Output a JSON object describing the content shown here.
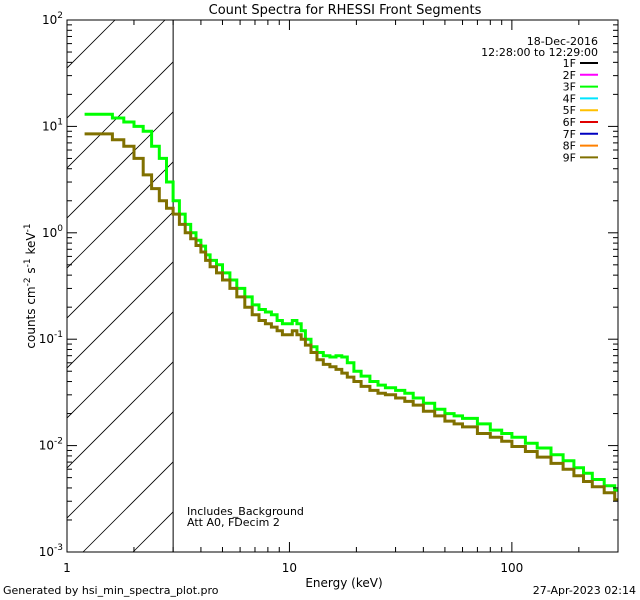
{
  "chart_data": {
    "type": "line",
    "title": "Count Spectra for RHESSI Front Segments",
    "xlabel": "Energy (keV)",
    "ylabel_base": "counts cm",
    "ylabel_exp1": "-2",
    "ylabel_mid1": " s",
    "ylabel_exp2": "-1",
    "ylabel_mid2": " keV",
    "ylabel_exp3": "-1",
    "x_scale": "log",
    "y_scale": "log",
    "xlim": [
      1,
      300
    ],
    "ylim": [
      0.001,
      100
    ],
    "x_ticks": [
      {
        "value": 1,
        "label": "1"
      },
      {
        "value": 10,
        "label": "10"
      },
      {
        "value": 100,
        "label": "100"
      }
    ],
    "y_ticks": [
      {
        "value": 100,
        "base": "10",
        "exp": "2"
      },
      {
        "value": 10,
        "base": "10",
        "exp": "1"
      },
      {
        "value": 1,
        "base": "10",
        "exp": "0"
      },
      {
        "value": 0.1,
        "base": "10",
        "exp": "-1"
      },
      {
        "value": 0.01,
        "base": "10",
        "exp": "-2"
      },
      {
        "value": 0.001,
        "base": "10",
        "exp": "-3"
      }
    ],
    "hatched_region_keV": [
      1,
      3
    ],
    "date": "18-Dec-2016",
    "time_range": "12:28:00 to 12:29:00",
    "annotation_lines": [
      "Includes_Background",
      "Att A0, FDecim 2"
    ],
    "legend": [
      {
        "label": "1F",
        "color": "#000000"
      },
      {
        "label": "2F",
        "color": "#ff00ff"
      },
      {
        "label": "3F",
        "color": "#00ff00"
      },
      {
        "label": "4F",
        "color": "#00e5ff"
      },
      {
        "label": "5F",
        "color": "#ffc000"
      },
      {
        "label": "6F",
        "color": "#e00000"
      },
      {
        "label": "7F",
        "color": "#0000c0"
      },
      {
        "label": "8F",
        "color": "#ff8000"
      },
      {
        "label": "9F",
        "color": "#807000"
      }
    ],
    "series": [
      {
        "name": "3F",
        "color": "#00ff00",
        "points": [
          [
            1.2,
            13
          ],
          [
            1.4,
            13
          ],
          [
            1.6,
            12
          ],
          [
            1.8,
            11
          ],
          [
            2.0,
            10
          ],
          [
            2.2,
            9
          ],
          [
            2.4,
            6.5
          ],
          [
            2.6,
            5
          ],
          [
            2.8,
            3
          ],
          [
            3.0,
            2
          ],
          [
            3.2,
            1.5
          ],
          [
            3.4,
            1.2
          ],
          [
            3.6,
            1.0
          ],
          [
            3.8,
            0.85
          ],
          [
            4.0,
            0.75
          ],
          [
            4.2,
            0.62
          ],
          [
            4.4,
            0.55
          ],
          [
            4.7,
            0.5
          ],
          [
            5.0,
            0.42
          ],
          [
            5.4,
            0.36
          ],
          [
            5.8,
            0.3
          ],
          [
            6.3,
            0.25
          ],
          [
            6.8,
            0.21
          ],
          [
            7.3,
            0.19
          ],
          [
            7.8,
            0.18
          ],
          [
            8.3,
            0.17
          ],
          [
            8.8,
            0.15
          ],
          [
            9.3,
            0.14
          ],
          [
            9.8,
            0.14
          ],
          [
            10.3,
            0.15
          ],
          [
            10.8,
            0.14
          ],
          [
            11.3,
            0.12
          ],
          [
            11.8,
            0.1
          ],
          [
            12.5,
            0.085
          ],
          [
            13.3,
            0.075
          ],
          [
            14.2,
            0.07
          ],
          [
            15.2,
            0.068
          ],
          [
            16.2,
            0.07
          ],
          [
            17.2,
            0.068
          ],
          [
            18.2,
            0.06
          ],
          [
            19.5,
            0.05
          ],
          [
            21,
            0.045
          ],
          [
            23,
            0.04
          ],
          [
            25,
            0.037
          ],
          [
            27,
            0.035
          ],
          [
            30,
            0.033
          ],
          [
            33,
            0.031
          ],
          [
            36,
            0.028
          ],
          [
            40,
            0.025
          ],
          [
            45,
            0.022
          ],
          [
            50,
            0.02
          ],
          [
            55,
            0.019
          ],
          [
            60,
            0.018
          ],
          [
            70,
            0.016
          ],
          [
            80,
            0.014
          ],
          [
            90,
            0.013
          ],
          [
            100,
            0.012
          ],
          [
            115,
            0.0105
          ],
          [
            130,
            0.0095
          ],
          [
            150,
            0.0082
          ],
          [
            170,
            0.0072
          ],
          [
            190,
            0.0062
          ],
          [
            210,
            0.0055
          ],
          [
            230,
            0.0048
          ],
          [
            260,
            0.0042
          ],
          [
            290,
            0.0038
          ]
        ]
      },
      {
        "name": "9F",
        "color": "#807000",
        "points": [
          [
            1.2,
            8.5
          ],
          [
            1.4,
            8.5
          ],
          [
            1.6,
            7.5
          ],
          [
            1.8,
            6.5
          ],
          [
            2.0,
            5
          ],
          [
            2.2,
            3.5
          ],
          [
            2.4,
            2.6
          ],
          [
            2.6,
            2.0
          ],
          [
            2.8,
            1.7
          ],
          [
            3.0,
            1.5
          ],
          [
            3.2,
            1.2
          ],
          [
            3.4,
            1.0
          ],
          [
            3.6,
            0.88
          ],
          [
            3.8,
            0.76
          ],
          [
            4.0,
            0.66
          ],
          [
            4.2,
            0.55
          ],
          [
            4.4,
            0.48
          ],
          [
            4.7,
            0.42
          ],
          [
            5.0,
            0.36
          ],
          [
            5.4,
            0.3
          ],
          [
            5.8,
            0.25
          ],
          [
            6.3,
            0.2
          ],
          [
            6.8,
            0.17
          ],
          [
            7.3,
            0.15
          ],
          [
            7.8,
            0.14
          ],
          [
            8.3,
            0.13
          ],
          [
            8.8,
            0.12
          ],
          [
            9.3,
            0.11
          ],
          [
            9.8,
            0.11
          ],
          [
            10.3,
            0.12
          ],
          [
            10.8,
            0.11
          ],
          [
            11.3,
            0.1
          ],
          [
            11.8,
            0.088
          ],
          [
            12.5,
            0.075
          ],
          [
            13.3,
            0.064
          ],
          [
            14.2,
            0.058
          ],
          [
            15.2,
            0.055
          ],
          [
            16.2,
            0.052
          ],
          [
            17.2,
            0.048
          ],
          [
            18.2,
            0.044
          ],
          [
            19.5,
            0.04
          ],
          [
            21,
            0.036
          ],
          [
            23,
            0.033
          ],
          [
            25,
            0.031
          ],
          [
            27,
            0.03
          ],
          [
            30,
            0.028
          ],
          [
            33,
            0.026
          ],
          [
            36,
            0.024
          ],
          [
            40,
            0.021
          ],
          [
            45,
            0.019
          ],
          [
            50,
            0.017
          ],
          [
            55,
            0.016
          ],
          [
            60,
            0.015
          ],
          [
            70,
            0.013
          ],
          [
            80,
            0.012
          ],
          [
            90,
            0.011
          ],
          [
            100,
            0.0098
          ],
          [
            115,
            0.0088
          ],
          [
            130,
            0.0078
          ],
          [
            150,
            0.0068
          ],
          [
            170,
            0.006
          ],
          [
            190,
            0.0052
          ],
          [
            210,
            0.0046
          ],
          [
            230,
            0.0041
          ],
          [
            260,
            0.0036
          ],
          [
            290,
            0.0031
          ]
        ]
      }
    ]
  },
  "footer": {
    "generated_by": "Generated by hsi_min_spectra_plot.pro",
    "timestamp": "27-Apr-2023 02:14"
  }
}
